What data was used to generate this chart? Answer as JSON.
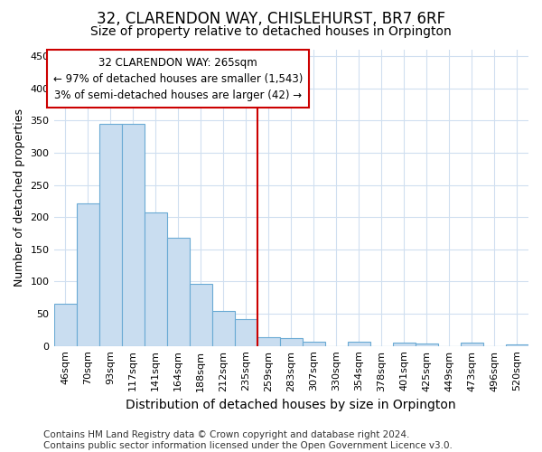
{
  "title": "32, CLARENDON WAY, CHISLEHURST, BR7 6RF",
  "subtitle": "Size of property relative to detached houses in Orpington",
  "xlabel": "Distribution of detached houses by size in Orpington",
  "ylabel": "Number of detached properties",
  "bar_labels": [
    "46sqm",
    "70sqm",
    "93sqm",
    "117sqm",
    "141sqm",
    "164sqm",
    "188sqm",
    "212sqm",
    "235sqm",
    "259sqm",
    "283sqm",
    "307sqm",
    "330sqm",
    "354sqm",
    "378sqm",
    "401sqm",
    "425sqm",
    "449sqm",
    "473sqm",
    "496sqm",
    "520sqm"
  ],
  "bar_values": [
    65,
    222,
    345,
    345,
    208,
    168,
    97,
    55,
    42,
    13,
    12,
    7,
    0,
    6,
    0,
    5,
    4,
    0,
    5,
    0,
    3
  ],
  "bar_color": "#c9ddf0",
  "bar_edge_color": "#6aaad4",
  "background_color": "#ffffff",
  "axes_bg_color": "#ffffff",
  "grid_color": "#d0dff0",
  "vline_color": "#cc0000",
  "annotation_text": "32 CLARENDON WAY: 265sqm\n← 97% of detached houses are smaller (1,543)\n3% of semi-detached houses are larger (42) →",
  "annotation_box_facecolor": "#ffffff",
  "annotation_box_edgecolor": "#cc0000",
  "ylim": [
    0,
    460
  ],
  "yticks": [
    0,
    50,
    100,
    150,
    200,
    250,
    300,
    350,
    400,
    450
  ],
  "footer": "Contains HM Land Registry data © Crown copyright and database right 2024.\nContains public sector information licensed under the Open Government Licence v3.0.",
  "title_fontsize": 12,
  "subtitle_fontsize": 10,
  "xlabel_fontsize": 10,
  "ylabel_fontsize": 9,
  "tick_fontsize": 8,
  "annotation_fontsize": 8.5,
  "footer_fontsize": 7.5
}
